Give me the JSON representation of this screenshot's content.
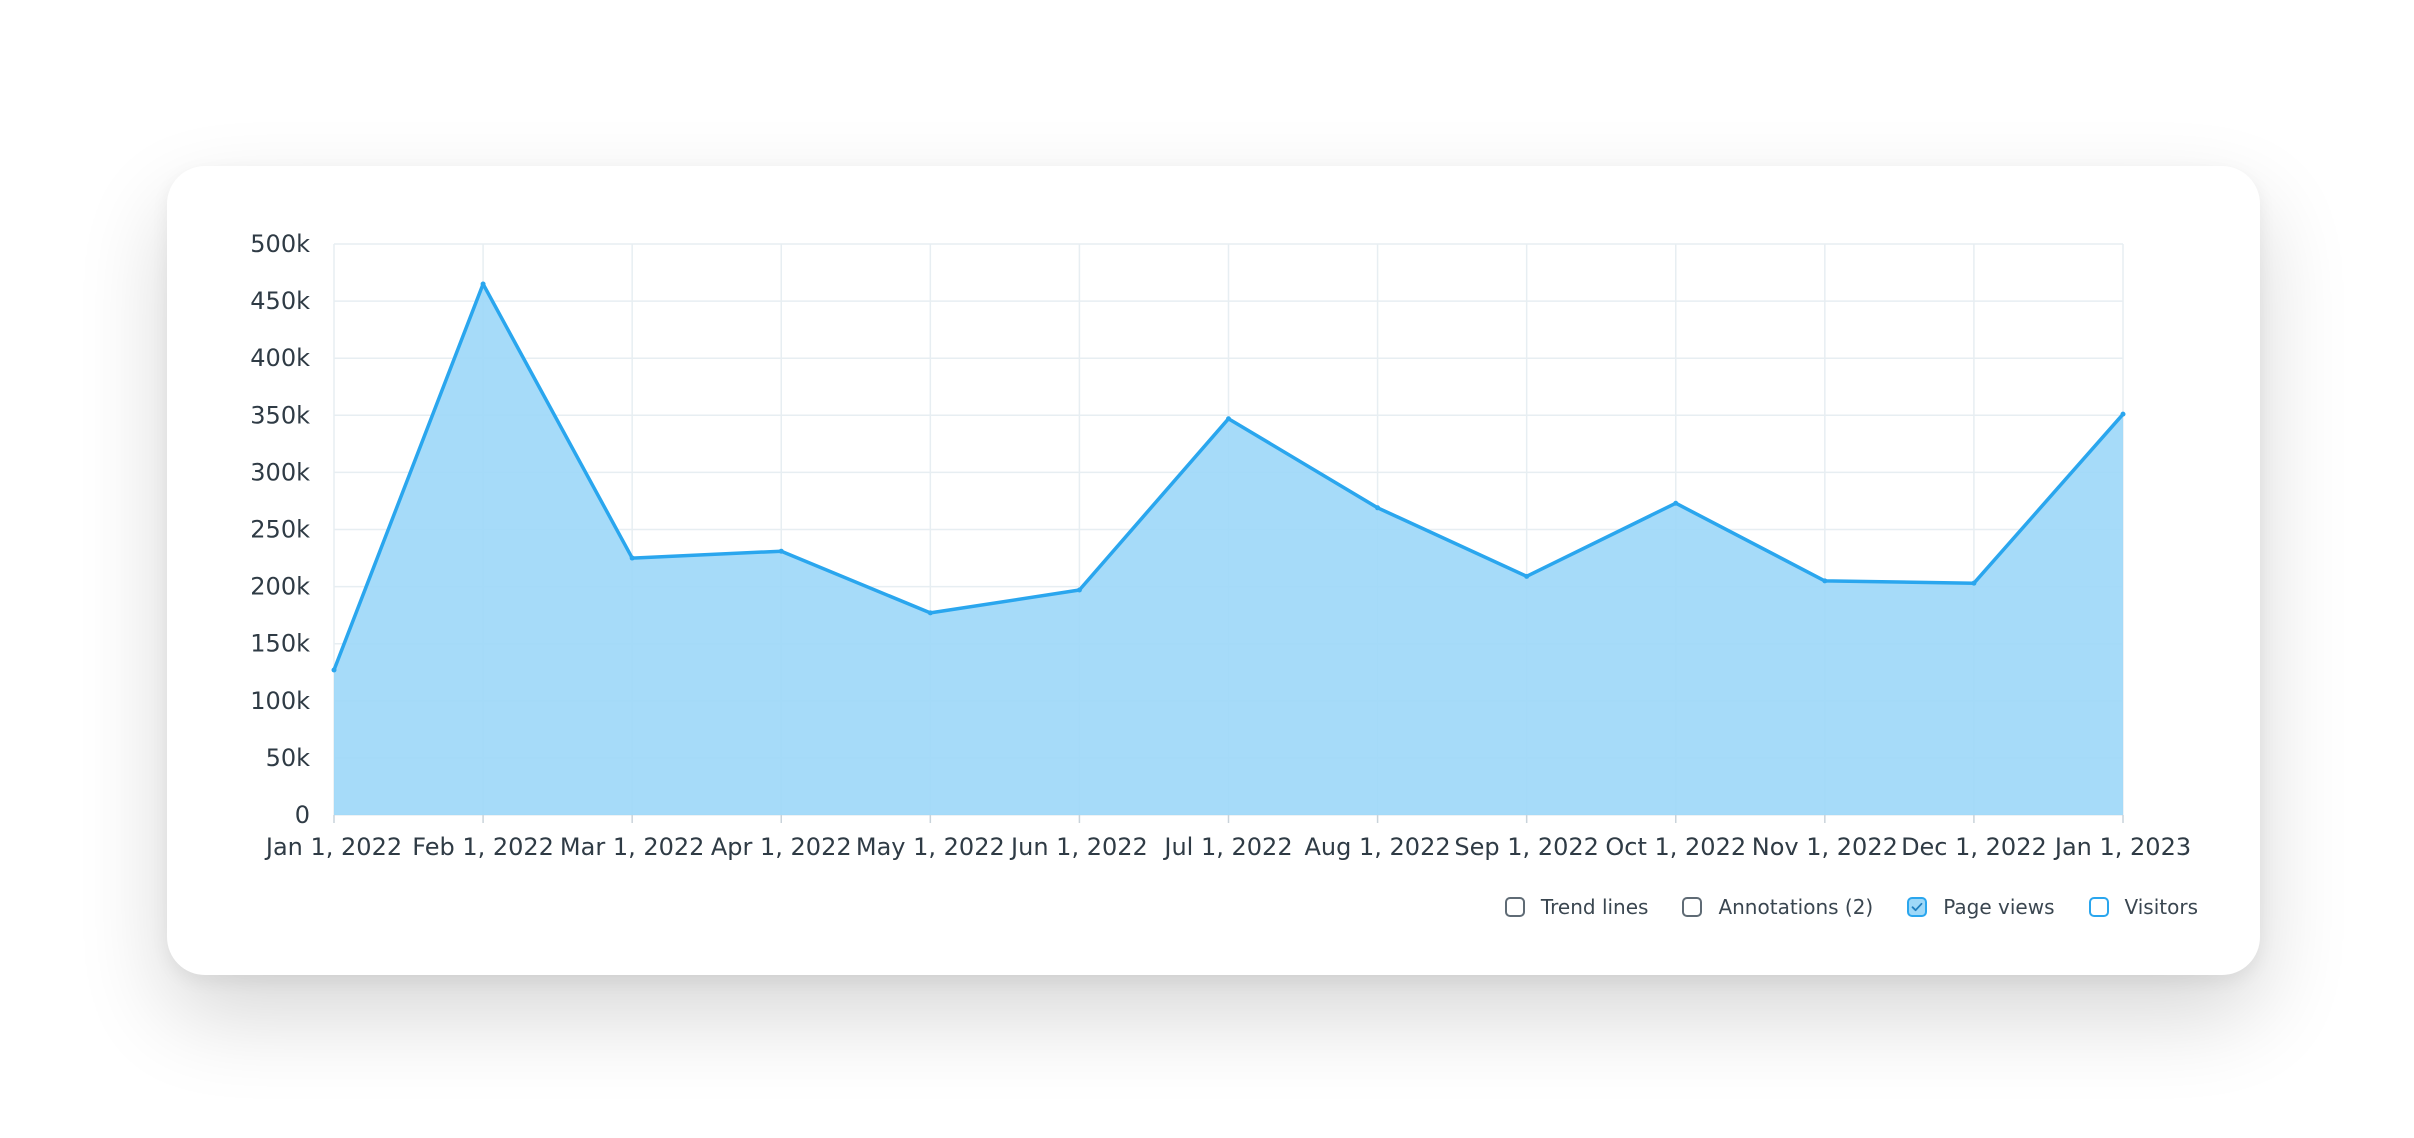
{
  "chart_data": {
    "type": "area",
    "x": [
      "Jan 1, 2022",
      "Feb 1, 2022",
      "Mar 1, 2022",
      "Apr 1, 2022",
      "May 1, 2022",
      "Jun 1, 2022",
      "Jul 1, 2022",
      "Aug 1, 2022",
      "Sep 1, 2022",
      "Oct 1, 2022",
      "Nov 1, 2022",
      "Dec 1, 2022",
      "Jan 1, 2023"
    ],
    "series": [
      {
        "name": "Page views",
        "values": [
          127000,
          465000,
          225000,
          231000,
          177000,
          197000,
          347000,
          269000,
          209000,
          273000,
          205000,
          203000,
          351000
        ]
      }
    ],
    "y_ticks": [
      "0",
      "50k",
      "100k",
      "150k",
      "200k",
      "250k",
      "300k",
      "350k",
      "400k",
      "450k",
      "500k"
    ],
    "ylim": [
      0,
      500000
    ],
    "grid": true,
    "legend_placement": "bottom-right",
    "colors": {
      "line": "#2aa6ee",
      "fill": "#9ed8f8",
      "grid": "#e7eef2",
      "text": "#2f3b45"
    }
  },
  "legend": {
    "items": [
      {
        "label": "Trend lines",
        "checked": false,
        "kind": "option"
      },
      {
        "label": "Annotations (2)",
        "checked": false,
        "kind": "option"
      },
      {
        "label": "Page views",
        "checked": true,
        "kind": "series"
      },
      {
        "label": "Visitors",
        "checked": false,
        "kind": "series"
      }
    ]
  }
}
